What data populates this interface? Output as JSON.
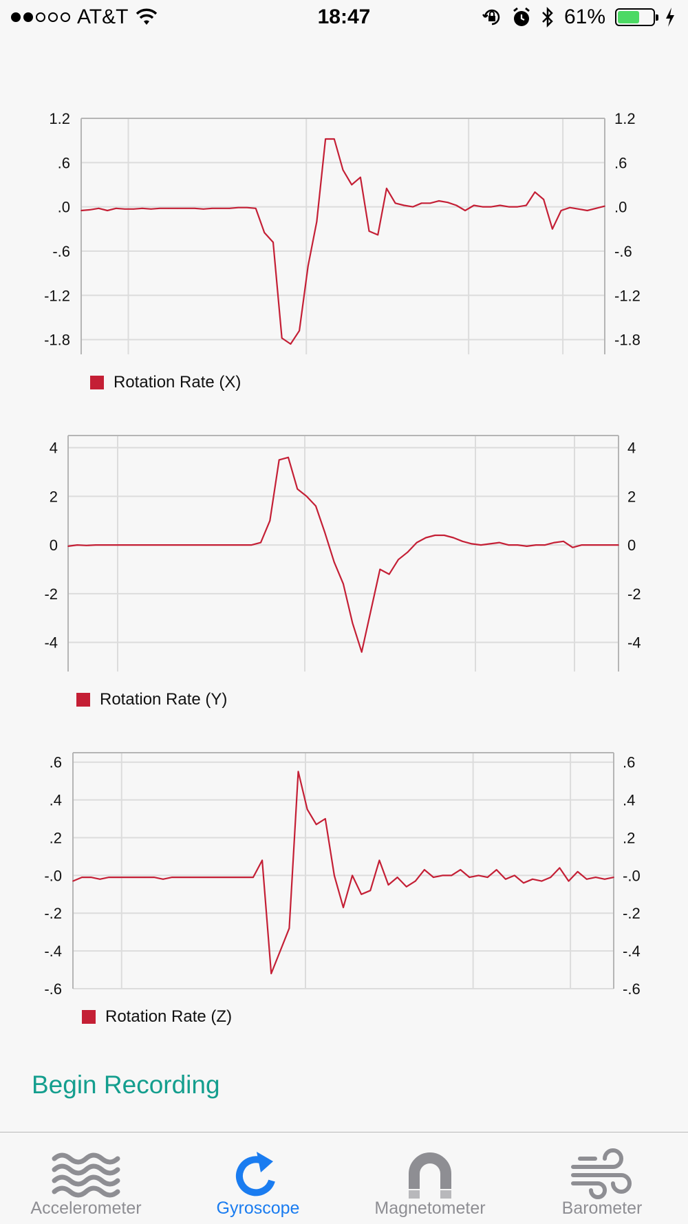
{
  "status_bar": {
    "carrier": "AT&T",
    "time": "18:47",
    "battery_percent": "61%",
    "battery_level": 0.61,
    "signal_bars": 2,
    "icons": [
      "wifi-icon",
      "orientation-lock-icon",
      "alarm-icon",
      "bluetooth-icon",
      "charging-bolt-icon"
    ]
  },
  "chart_data": [
    {
      "type": "line",
      "legend": "Rotation Rate (X)",
      "color": "#c41f35",
      "ylim": [
        -2.0,
        1.2
      ],
      "yticks": [
        "1.2",
        ".6",
        ".0",
        "-.6",
        "-1.2",
        "-1.8"
      ],
      "ytick_values": [
        1.2,
        0.6,
        0.0,
        -0.6,
        -1.2,
        -1.8
      ],
      "grid": true,
      "x": [
        0,
        1,
        2,
        3,
        4,
        5,
        6,
        7,
        8,
        9,
        10,
        11,
        12,
        13,
        14,
        15,
        16,
        17,
        18,
        19,
        20,
        21,
        22,
        23,
        24,
        25,
        26,
        27,
        28,
        29,
        30,
        31,
        32,
        33,
        34,
        35,
        36,
        37,
        38,
        39,
        40,
        41,
        42,
        43,
        44,
        45,
        46,
        47,
        48,
        49,
        50,
        51,
        52,
        53,
        54,
        55,
        56,
        57,
        58,
        59,
        60
      ],
      "values": [
        -0.05,
        -0.04,
        -0.02,
        -0.05,
        -0.02,
        -0.03,
        -0.03,
        -0.02,
        -0.03,
        -0.02,
        -0.02,
        -0.02,
        -0.02,
        -0.02,
        -0.03,
        -0.02,
        -0.02,
        -0.02,
        -0.01,
        -0.01,
        -0.02,
        -0.35,
        -0.48,
        -1.78,
        -1.86,
        -1.68,
        -0.8,
        -0.2,
        0.92,
        0.92,
        0.5,
        0.3,
        0.4,
        -0.33,
        -0.38,
        0.25,
        0.05,
        0.02,
        0.0,
        0.05,
        0.05,
        0.08,
        0.06,
        0.02,
        -0.05,
        0.02,
        0.0,
        0.0,
        0.02,
        0.0,
        0.0,
        0.02,
        0.2,
        0.1,
        -0.3,
        -0.05,
        -0.01,
        -0.03,
        -0.05,
        -0.02,
        0.01
      ]
    },
    {
      "type": "line",
      "legend": "Rotation Rate (Y)",
      "color": "#c41f35",
      "ylim": [
        -5.2,
        4.5
      ],
      "yticks": [
        "4",
        "2",
        "0",
        "-2",
        "-4"
      ],
      "ytick_values": [
        4,
        2,
        0,
        -2,
        -4
      ],
      "grid": true,
      "x": [
        0,
        1,
        2,
        3,
        4,
        5,
        6,
        7,
        8,
        9,
        10,
        11,
        12,
        13,
        14,
        15,
        16,
        17,
        18,
        19,
        20,
        21,
        22,
        23,
        24,
        25,
        26,
        27,
        28,
        29,
        30,
        31,
        32,
        33,
        34,
        35,
        36,
        37,
        38,
        39,
        40,
        41,
        42,
        43,
        44,
        45,
        46,
        47,
        48,
        49,
        50,
        51,
        52,
        53,
        54,
        55,
        56,
        57,
        58,
        59,
        60
      ],
      "values": [
        -0.05,
        0.0,
        -0.02,
        0.0,
        0.0,
        0.0,
        0.0,
        0.0,
        0.0,
        0.0,
        0.0,
        0.0,
        0.0,
        0.0,
        0.0,
        0.0,
        0.0,
        0.0,
        0.0,
        0.0,
        0.0,
        0.1,
        1.0,
        3.5,
        3.6,
        2.3,
        2.0,
        1.6,
        0.5,
        -0.7,
        -1.6,
        -3.2,
        -4.4,
        -2.7,
        -1.0,
        -1.2,
        -0.6,
        -0.3,
        0.1,
        0.3,
        0.4,
        0.4,
        0.3,
        0.15,
        0.05,
        0.0,
        0.05,
        0.1,
        0.0,
        0.0,
        -0.05,
        0.0,
        0.0,
        0.1,
        0.15,
        -0.1,
        0.0,
        0.0,
        0.0,
        0.0,
        0.0
      ]
    },
    {
      "type": "line",
      "legend": "Rotation Rate (Z)",
      "color": "#c41f35",
      "ylim": [
        -0.6,
        0.65
      ],
      "yticks": [
        ".6",
        ".4",
        ".2",
        "-.0",
        "-.2",
        "-.4",
        "-.6"
      ],
      "ytick_values": [
        0.6,
        0.4,
        0.2,
        0.0,
        -0.2,
        -0.4,
        -0.6
      ],
      "grid": true,
      "x": [
        0,
        1,
        2,
        3,
        4,
        5,
        6,
        7,
        8,
        9,
        10,
        11,
        12,
        13,
        14,
        15,
        16,
        17,
        18,
        19,
        20,
        21,
        22,
        23,
        24,
        25,
        26,
        27,
        28,
        29,
        30,
        31,
        32,
        33,
        34,
        35,
        36,
        37,
        38,
        39,
        40,
        41,
        42,
        43,
        44,
        45,
        46,
        47,
        48,
        49,
        50,
        51,
        52,
        53,
        54,
        55,
        56,
        57,
        58,
        59,
        60
      ],
      "values": [
        -0.03,
        -0.01,
        -0.01,
        -0.02,
        -0.01,
        -0.01,
        -0.01,
        -0.01,
        -0.01,
        -0.01,
        -0.02,
        -0.01,
        -0.01,
        -0.01,
        -0.01,
        -0.01,
        -0.01,
        -0.01,
        -0.01,
        -0.01,
        -0.01,
        0.08,
        -0.52,
        -0.4,
        -0.28,
        0.55,
        0.35,
        0.27,
        0.3,
        0.0,
        -0.17,
        0.0,
        -0.1,
        -0.08,
        0.08,
        -0.05,
        -0.01,
        -0.06,
        -0.03,
        0.03,
        -0.01,
        0.0,
        0.0,
        0.03,
        -0.01,
        0.0,
        -0.01,
        0.03,
        -0.02,
        0.0,
        -0.04,
        -0.02,
        -0.03,
        -0.01,
        0.04,
        -0.03,
        0.02,
        -0.02,
        -0.01,
        -0.02,
        -0.01
      ]
    }
  ],
  "actions": {
    "record_label": "Begin Recording"
  },
  "tabs": [
    {
      "label": "Accelerometer",
      "icon": "waves-icon",
      "active": false
    },
    {
      "label": "Gyroscope",
      "icon": "rotate-arrow-icon",
      "active": true
    },
    {
      "label": "Magnetometer",
      "icon": "magnet-icon",
      "active": false
    },
    {
      "label": "Barometer",
      "icon": "wind-icon",
      "active": false
    }
  ]
}
